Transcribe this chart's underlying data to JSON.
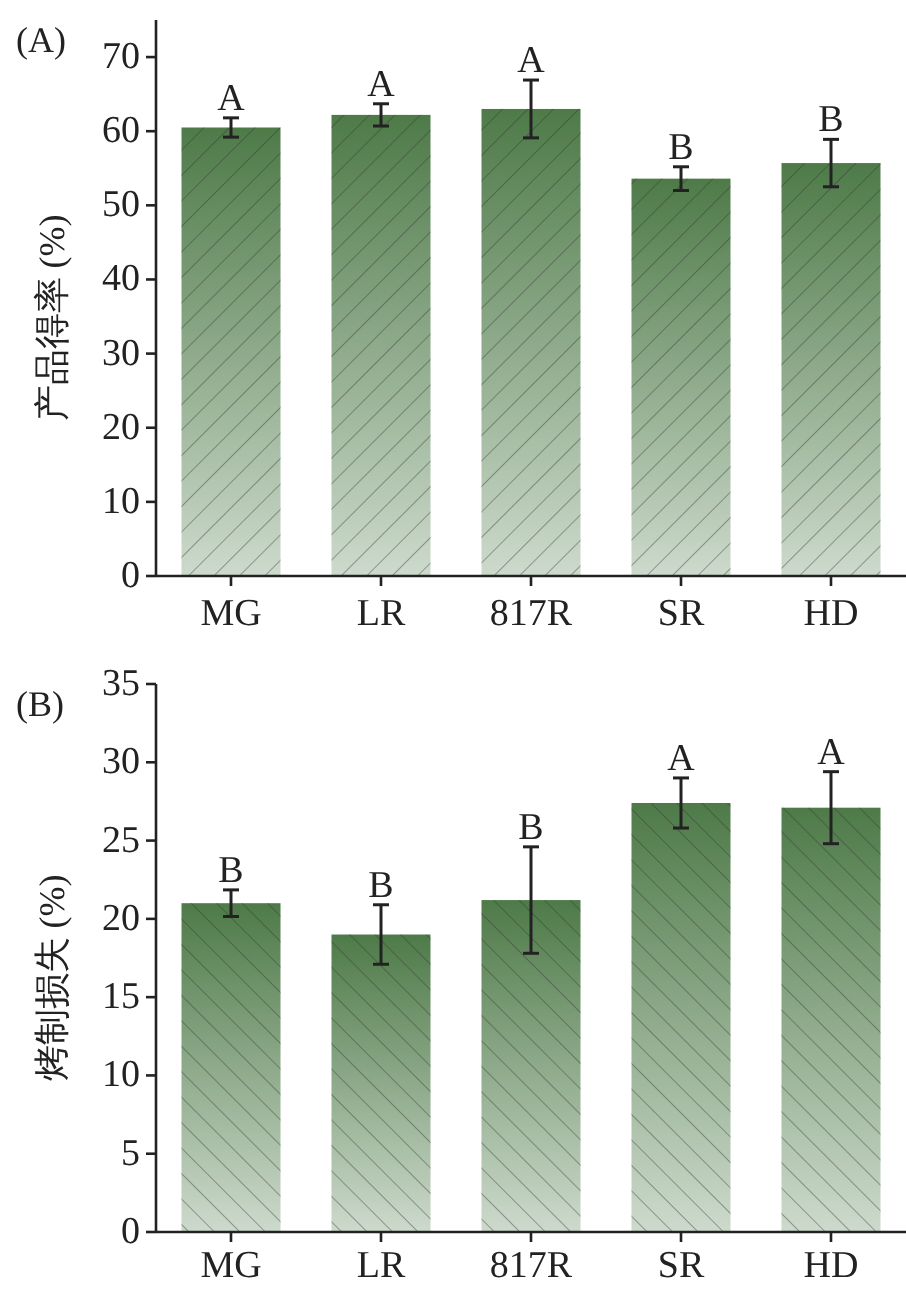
{
  "chart_data": [
    {
      "type": "bar",
      "title": "(A)",
      "ylabel": "产品得率 (%)",
      "categories": [
        "MG",
        "LR",
        "817R",
        "SR",
        "HD"
      ],
      "values": [
        60.5,
        62.2,
        63.0,
        53.6,
        55.7
      ],
      "errors": [
        1.3,
        1.5,
        3.9,
        1.6,
        3.2
      ],
      "color": "#4e7a48",
      "ylim": [
        0,
        75
      ],
      "yticks": [
        0,
        10,
        20,
        30,
        40,
        50,
        60,
        70
      ],
      "annotations": [
        {
          "text": "A",
          "x": "MG",
          "y": 61.8
        },
        {
          "text": "A",
          "x": "LR",
          "y": 63.7
        },
        {
          "text": "A",
          "x": "817R",
          "y": 66.9
        },
        {
          "text": "B",
          "x": "SR",
          "y": 55.2
        },
        {
          "text": "B",
          "x": "HD",
          "y": 58.9
        }
      ]
    },
    {
      "type": "bar",
      "title": "(B)",
      "ylabel": "烤制损失 (%)",
      "categories": [
        "MG",
        "LR",
        "817R",
        "SR",
        "HD"
      ],
      "values": [
        21.0,
        19.0,
        21.2,
        27.4,
        27.1
      ],
      "errors": [
        0.85,
        1.9,
        3.4,
        1.6,
        2.3
      ],
      "color": "#4e7a48",
      "ylim": [
        0,
        35
      ],
      "yticks": [
        0,
        5,
        10,
        15,
        20,
        25,
        30,
        35
      ],
      "annotations": [
        {
          "text": "B",
          "x": "MG",
          "y": 21.85
        },
        {
          "text": "B",
          "x": "LR",
          "y": 20.9
        },
        {
          "text": "B",
          "x": "817R",
          "y": 24.6
        },
        {
          "text": "A",
          "x": "SR",
          "y": 29.0
        },
        {
          "text": "A",
          "x": "HD",
          "y": 29.4
        }
      ]
    }
  ]
}
